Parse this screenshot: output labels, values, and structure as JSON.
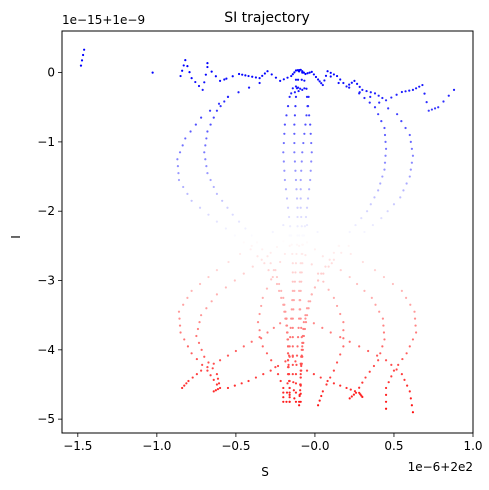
{
  "chart_data": {
    "type": "scatter",
    "title": "SI trajectory",
    "xlabel": "S",
    "ylabel": "I",
    "x_offset_label": "1e−6+2e2",
    "y_offset_label": "1e−15+1e−9",
    "xlim": [
      -1.6,
      1.0
    ],
    "ylim": [
      -5.2,
      0.6
    ],
    "xticks": [
      -1.5,
      -1.0,
      -0.5,
      0.0,
      0.5,
      1.0
    ],
    "xtick_labels": [
      "−1.5",
      "−1.0",
      "−0.5",
      "−0.0",
      "0.5",
      "1.0"
    ],
    "yticks": [
      0,
      -1,
      -2,
      -3,
      -4,
      -5
    ],
    "ytick_labels": [
      "0",
      "−1",
      "−2",
      "−3",
      "−4",
      "−5"
    ],
    "grid": false,
    "colormap": [
      "#0000ff",
      "#ffffff",
      "#ff0000"
    ],
    "color_encoding": "point color goes from blue at I = 0 through white at I ≈ −2.4 to red at I = −5",
    "series": [
      {
        "points": [
          [
            -0.1,
            0.02
          ],
          [
            -0.16,
            -0.35
          ],
          [
            -0.19,
            -0.75
          ],
          [
            -0.2,
            -1.15
          ],
          [
            -0.19,
            -1.55
          ],
          [
            -0.17,
            -1.95
          ],
          [
            -0.15,
            -2.35
          ],
          [
            -0.14,
            -2.75
          ],
          [
            -0.14,
            -3.15
          ],
          [
            -0.15,
            -3.55
          ],
          [
            -0.16,
            -3.95
          ],
          [
            -0.17,
            -4.35
          ],
          [
            -0.18,
            -4.75
          ]
        ]
      },
      {
        "points": [
          [
            -0.1,
            0.02
          ],
          [
            -0.05,
            -0.35
          ],
          [
            -0.03,
            -0.75
          ],
          [
            -0.02,
            -1.15
          ],
          [
            -0.03,
            -1.55
          ],
          [
            -0.05,
            -1.95
          ],
          [
            -0.07,
            -2.35
          ],
          [
            -0.09,
            -2.75
          ],
          [
            -0.1,
            -3.15
          ],
          [
            -0.09,
            -3.55
          ],
          [
            -0.08,
            -3.95
          ],
          [
            -0.09,
            -4.35
          ],
          [
            -0.1,
            -4.8
          ]
        ]
      },
      {
        "points": [
          [
            -0.1,
            0.02
          ],
          [
            -0.12,
            -0.35
          ],
          [
            -0.13,
            -0.75
          ],
          [
            -0.13,
            -1.15
          ],
          [
            -0.12,
            -1.55
          ],
          [
            -0.11,
            -1.95
          ],
          [
            -0.11,
            -2.35
          ],
          [
            -0.12,
            -2.75
          ],
          [
            -0.13,
            -3.15
          ],
          [
            -0.14,
            -3.55
          ],
          [
            -0.14,
            -3.95
          ],
          [
            -0.14,
            -4.35
          ],
          [
            -0.13,
            -4.7
          ]
        ]
      },
      {
        "points": [
          [
            -0.08,
            0.0
          ],
          [
            -0.04,
            -0.35
          ],
          [
            -0.06,
            -0.75
          ],
          [
            -0.08,
            -1.15
          ],
          [
            -0.09,
            -1.55
          ],
          [
            -0.09,
            -1.95
          ],
          [
            -0.08,
            -2.35
          ],
          [
            -0.08,
            -2.75
          ],
          [
            -0.09,
            -3.15
          ],
          [
            -0.1,
            -3.55
          ],
          [
            -0.11,
            -3.95
          ],
          [
            -0.12,
            -4.35
          ],
          [
            -0.12,
            -4.75
          ]
        ]
      },
      {
        "points": [
          [
            -0.55,
            -0.35
          ],
          [
            -0.62,
            -0.55
          ],
          [
            -0.68,
            -0.85
          ],
          [
            -0.7,
            -1.15
          ],
          [
            -0.68,
            -1.45
          ],
          [
            -0.62,
            -1.75
          ],
          [
            -0.52,
            -2.05
          ],
          [
            -0.4,
            -2.35
          ],
          [
            -0.3,
            -2.65
          ],
          [
            -0.24,
            -2.95
          ],
          [
            -0.2,
            -3.25
          ],
          [
            -0.18,
            -3.55
          ],
          [
            -0.17,
            -3.85
          ],
          [
            -0.17,
            -4.15
          ],
          [
            -0.16,
            -4.45
          ],
          [
            -0.16,
            -4.75
          ]
        ]
      },
      {
        "points": [
          [
            0.28,
            -0.3
          ],
          [
            0.38,
            -0.5
          ],
          [
            0.44,
            -0.8
          ],
          [
            0.45,
            -1.1
          ],
          [
            0.44,
            -1.4
          ],
          [
            0.4,
            -1.7
          ],
          [
            0.33,
            -2.0
          ],
          [
            0.22,
            -2.3
          ],
          [
            0.12,
            -2.6
          ],
          [
            0.04,
            -2.9
          ],
          [
            -0.02,
            -3.2
          ],
          [
            -0.05,
            -3.5
          ],
          [
            -0.07,
            -3.8
          ],
          [
            -0.08,
            -4.1
          ],
          [
            -0.09,
            -4.4
          ],
          [
            -0.09,
            -4.75
          ]
        ]
      },
      {
        "points": [
          [
            -0.35,
            -0.15
          ],
          [
            -0.55,
            -0.35
          ],
          [
            -0.72,
            -0.65
          ],
          [
            -0.82,
            -0.95
          ],
          [
            -0.87,
            -1.25
          ],
          [
            -0.86,
            -1.55
          ],
          [
            -0.78,
            -1.85
          ],
          [
            -0.62,
            -2.15
          ],
          [
            -0.45,
            -2.45
          ],
          [
            -0.32,
            -2.75
          ],
          [
            -0.24,
            -3.05
          ],
          [
            -0.2,
            -3.35
          ],
          [
            -0.18,
            -3.65
          ],
          [
            -0.17,
            -3.95
          ],
          [
            -0.17,
            -4.25
          ],
          [
            -0.16,
            -4.55
          ],
          [
            -0.16,
            -4.75
          ]
        ]
      },
      {
        "points": [
          [
            0.15,
            -0.15
          ],
          [
            0.35,
            -0.35
          ],
          [
            0.52,
            -0.6
          ],
          [
            0.6,
            -0.9
          ],
          [
            0.62,
            -1.2
          ],
          [
            0.6,
            -1.5
          ],
          [
            0.54,
            -1.8
          ],
          [
            0.42,
            -2.1
          ],
          [
            0.26,
            -2.4
          ],
          [
            0.12,
            -2.7
          ],
          [
            0.02,
            -3.0
          ],
          [
            -0.04,
            -3.3
          ],
          [
            -0.07,
            -3.6
          ],
          [
            -0.08,
            -3.9
          ],
          [
            -0.09,
            -4.2
          ],
          [
            -0.09,
            -4.5
          ],
          [
            -0.1,
            -4.75
          ]
        ]
      },
      {
        "points": [
          [
            -0.16,
            -2.35
          ],
          [
            -0.28,
            -2.6
          ],
          [
            -0.45,
            -2.9
          ],
          [
            -0.62,
            -3.2
          ],
          [
            -0.72,
            -3.5
          ],
          [
            -0.75,
            -3.8
          ],
          [
            -0.7,
            -4.1
          ],
          [
            -0.62,
            -4.35
          ],
          [
            -0.6,
            -4.55
          ],
          [
            -0.64,
            -4.6
          ]
        ]
      },
      {
        "points": [
          [
            -0.1,
            -2.35
          ],
          [
            0.05,
            -2.65
          ],
          [
            0.22,
            -2.95
          ],
          [
            0.36,
            -3.25
          ],
          [
            0.43,
            -3.55
          ],
          [
            0.44,
            -3.85
          ],
          [
            0.4,
            -4.15
          ],
          [
            0.32,
            -4.4
          ],
          [
            0.26,
            -4.62
          ],
          [
            0.22,
            -4.7
          ]
        ]
      },
      {
        "points": [
          [
            -0.2,
            -2.2
          ],
          [
            -0.4,
            -2.5
          ],
          [
            -0.62,
            -2.85
          ],
          [
            -0.78,
            -3.15
          ],
          [
            -0.86,
            -3.45
          ],
          [
            -0.85,
            -3.75
          ],
          [
            -0.78,
            -4.05
          ],
          [
            -0.68,
            -4.3
          ],
          [
            -0.62,
            -4.5
          ]
        ]
      },
      {
        "points": [
          [
            -0.05,
            -2.2
          ],
          [
            0.15,
            -2.5
          ],
          [
            0.38,
            -2.85
          ],
          [
            0.55,
            -3.15
          ],
          [
            0.63,
            -3.45
          ],
          [
            0.64,
            -3.75
          ],
          [
            0.58,
            -4.05
          ],
          [
            0.5,
            -4.3
          ],
          [
            0.45,
            -4.55
          ],
          [
            0.45,
            -4.85
          ]
        ]
      },
      {
        "points": [
          [
            -0.16,
            -2.5
          ],
          [
            -0.25,
            -2.85
          ],
          [
            -0.33,
            -3.25
          ],
          [
            -0.36,
            -3.6
          ],
          [
            -0.33,
            -3.95
          ],
          [
            -0.25,
            -4.25
          ],
          [
            -0.2,
            -4.55
          ],
          [
            -0.2,
            -4.75
          ]
        ]
      },
      {
        "points": [
          [
            -0.1,
            -2.5
          ],
          [
            0.02,
            -2.9
          ],
          [
            0.12,
            -3.25
          ],
          [
            0.18,
            -3.6
          ],
          [
            0.18,
            -3.95
          ],
          [
            0.12,
            -4.3
          ],
          [
            0.05,
            -4.6
          ],
          [
            0.02,
            -4.8
          ]
        ]
      },
      {
        "points": [
          [
            -0.18,
            -3.55
          ],
          [
            -0.3,
            -3.75
          ],
          [
            -0.45,
            -3.95
          ],
          [
            -0.6,
            -4.15
          ],
          [
            -0.72,
            -4.3
          ],
          [
            -0.8,
            -4.45
          ],
          [
            -0.84,
            -4.55
          ]
        ]
      },
      {
        "points": [
          [
            -0.06,
            -3.55
          ],
          [
            0.1,
            -3.75
          ],
          [
            0.28,
            -3.95
          ],
          [
            0.45,
            -4.15
          ],
          [
            0.55,
            -4.35
          ],
          [
            0.6,
            -4.6
          ],
          [
            0.62,
            -4.9
          ]
        ]
      },
      {
        "points": [
          [
            -0.16,
            -4.1
          ],
          [
            -0.05,
            -4.3
          ],
          [
            0.08,
            -4.45
          ],
          [
            0.2,
            -4.55
          ],
          [
            0.28,
            -4.62
          ],
          [
            0.3,
            -4.68
          ]
        ]
      },
      {
        "points": [
          [
            -0.14,
            -4.1
          ],
          [
            -0.28,
            -4.3
          ],
          [
            -0.42,
            -4.45
          ],
          [
            -0.55,
            -4.55
          ]
        ]
      },
      {
        "points": [
          [
            -0.85,
            -0.05
          ],
          [
            -0.82,
            0.18
          ],
          [
            -0.78,
            -0.08
          ],
          [
            -0.71,
            -0.25
          ],
          [
            -0.68,
            0.08
          ],
          [
            -0.6,
            -0.12
          ],
          [
            -0.48,
            -0.02
          ],
          [
            -0.42,
            -0.05
          ],
          [
            -0.35,
            -0.08
          ],
          [
            -0.3,
            0.02
          ],
          [
            -0.22,
            -0.12
          ],
          [
            -0.15,
            -0.05
          ],
          [
            -0.12,
            0.03
          ],
          [
            -0.09,
            0.04
          ],
          [
            -0.06,
            -0.02
          ],
          [
            -0.02,
            0.01
          ],
          [
            0.02,
            -0.1
          ],
          [
            0.05,
            -0.18
          ],
          [
            0.08,
            0.02
          ],
          [
            0.14,
            -0.05
          ],
          [
            0.2,
            -0.2
          ],
          [
            0.25,
            -0.12
          ],
          [
            0.3,
            -0.25
          ],
          [
            0.38,
            -0.3
          ],
          [
            0.45,
            -0.4
          ],
          [
            0.55,
            -0.28
          ],
          [
            0.62,
            -0.25
          ],
          [
            0.68,
            -0.18
          ],
          [
            0.72,
            -0.55
          ],
          [
            0.78,
            -0.5
          ],
          [
            0.88,
            -0.25
          ],
          [
            -1.46,
            0.33
          ],
          [
            -1.48,
            0.1
          ],
          [
            -0.12,
            -0.2
          ],
          [
            -0.08,
            -0.25
          ],
          [
            -0.15,
            -0.3
          ]
        ]
      }
    ]
  }
}
